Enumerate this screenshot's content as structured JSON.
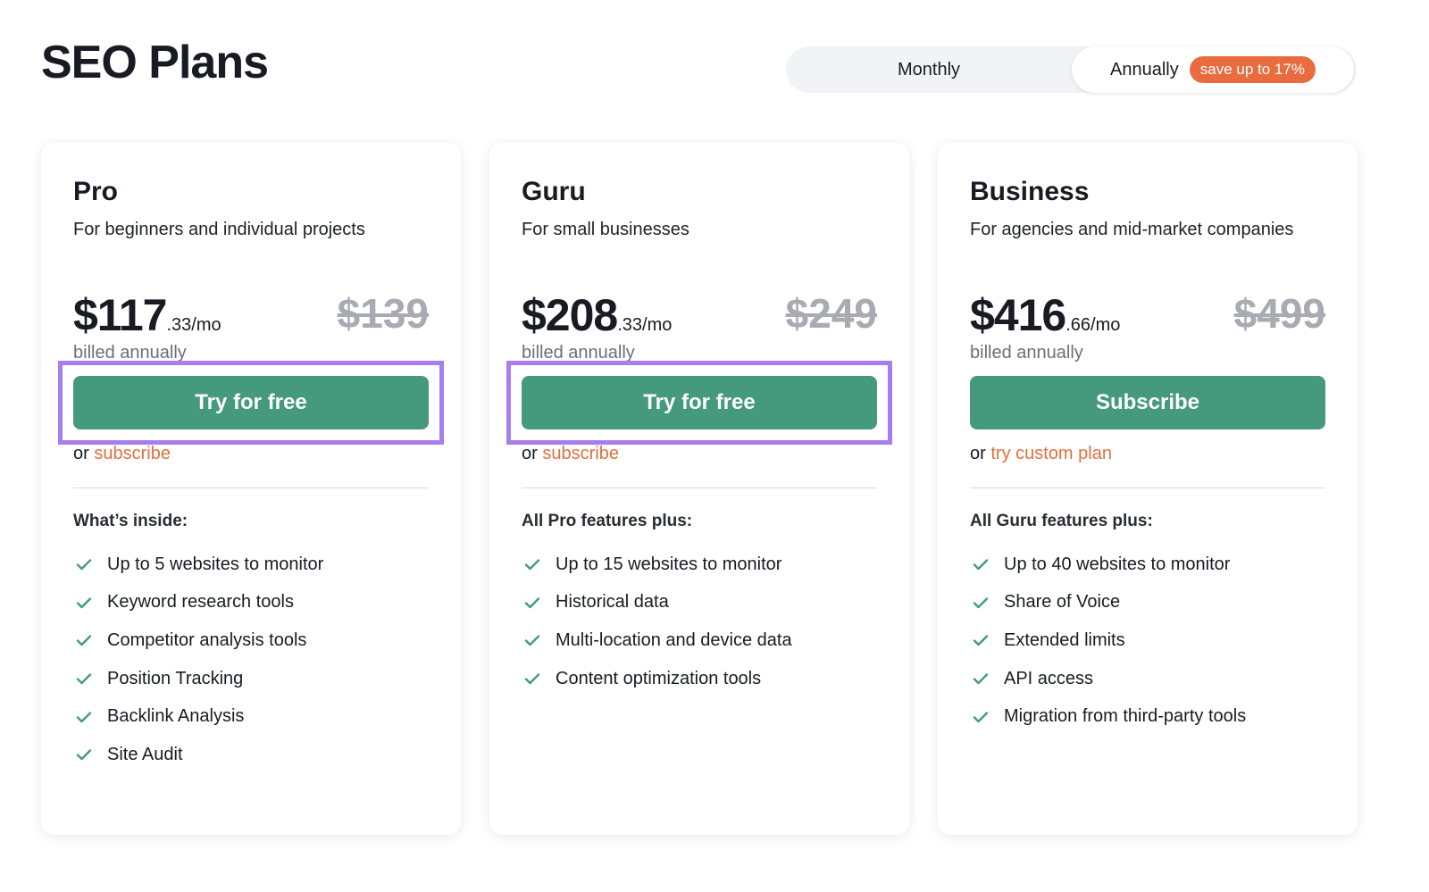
{
  "title": "SEO Plans",
  "billing": {
    "monthly": "Monthly",
    "annually": "Annually",
    "badge": "save up to 17%",
    "selected": "Annually"
  },
  "plans": [
    {
      "name": "Pro",
      "desc": "For beginners and individual projects",
      "price": "$117",
      "cents": ".33/mo",
      "old": "$139",
      "billed": "billed annually",
      "button": "Try for free",
      "or": "or",
      "link": "subscribe",
      "features_heading": "What’s inside:",
      "features": [
        "Up to 5 websites to monitor",
        "Keyword research tools",
        "Competitor analysis tools",
        "Position Tracking",
        "Backlink Analysis",
        "Site Audit"
      ]
    },
    {
      "name": "Guru",
      "desc": "For small businesses",
      "price": "$208",
      "cents": ".33/mo",
      "old": "$249",
      "billed": "billed annually",
      "button": "Try for free",
      "or": "or",
      "link": "subscribe",
      "features_heading": "All Pro features plus:",
      "features": [
        "Up to 15 websites to monitor",
        "Historical data",
        "Multi-location and device data",
        "Content optimization tools"
      ]
    },
    {
      "name": "Business",
      "desc": "For agencies and mid-market companies",
      "price": "$416",
      "cents": ".66/mo",
      "old": "$499",
      "billed": "billed annually",
      "button": "Subscribe",
      "or": "or",
      "link": "try custom plan",
      "features_heading": "All Guru features plus:",
      "features": [
        "Up to 40 websites to monitor",
        "Share of Voice",
        "Extended limits",
        "API access",
        "Migration from third-party tools"
      ]
    }
  ],
  "colors": {
    "accent": "#45997d",
    "link": "#e0703f",
    "badge": "#e96c3f",
    "highlight": "#a67ef0"
  }
}
